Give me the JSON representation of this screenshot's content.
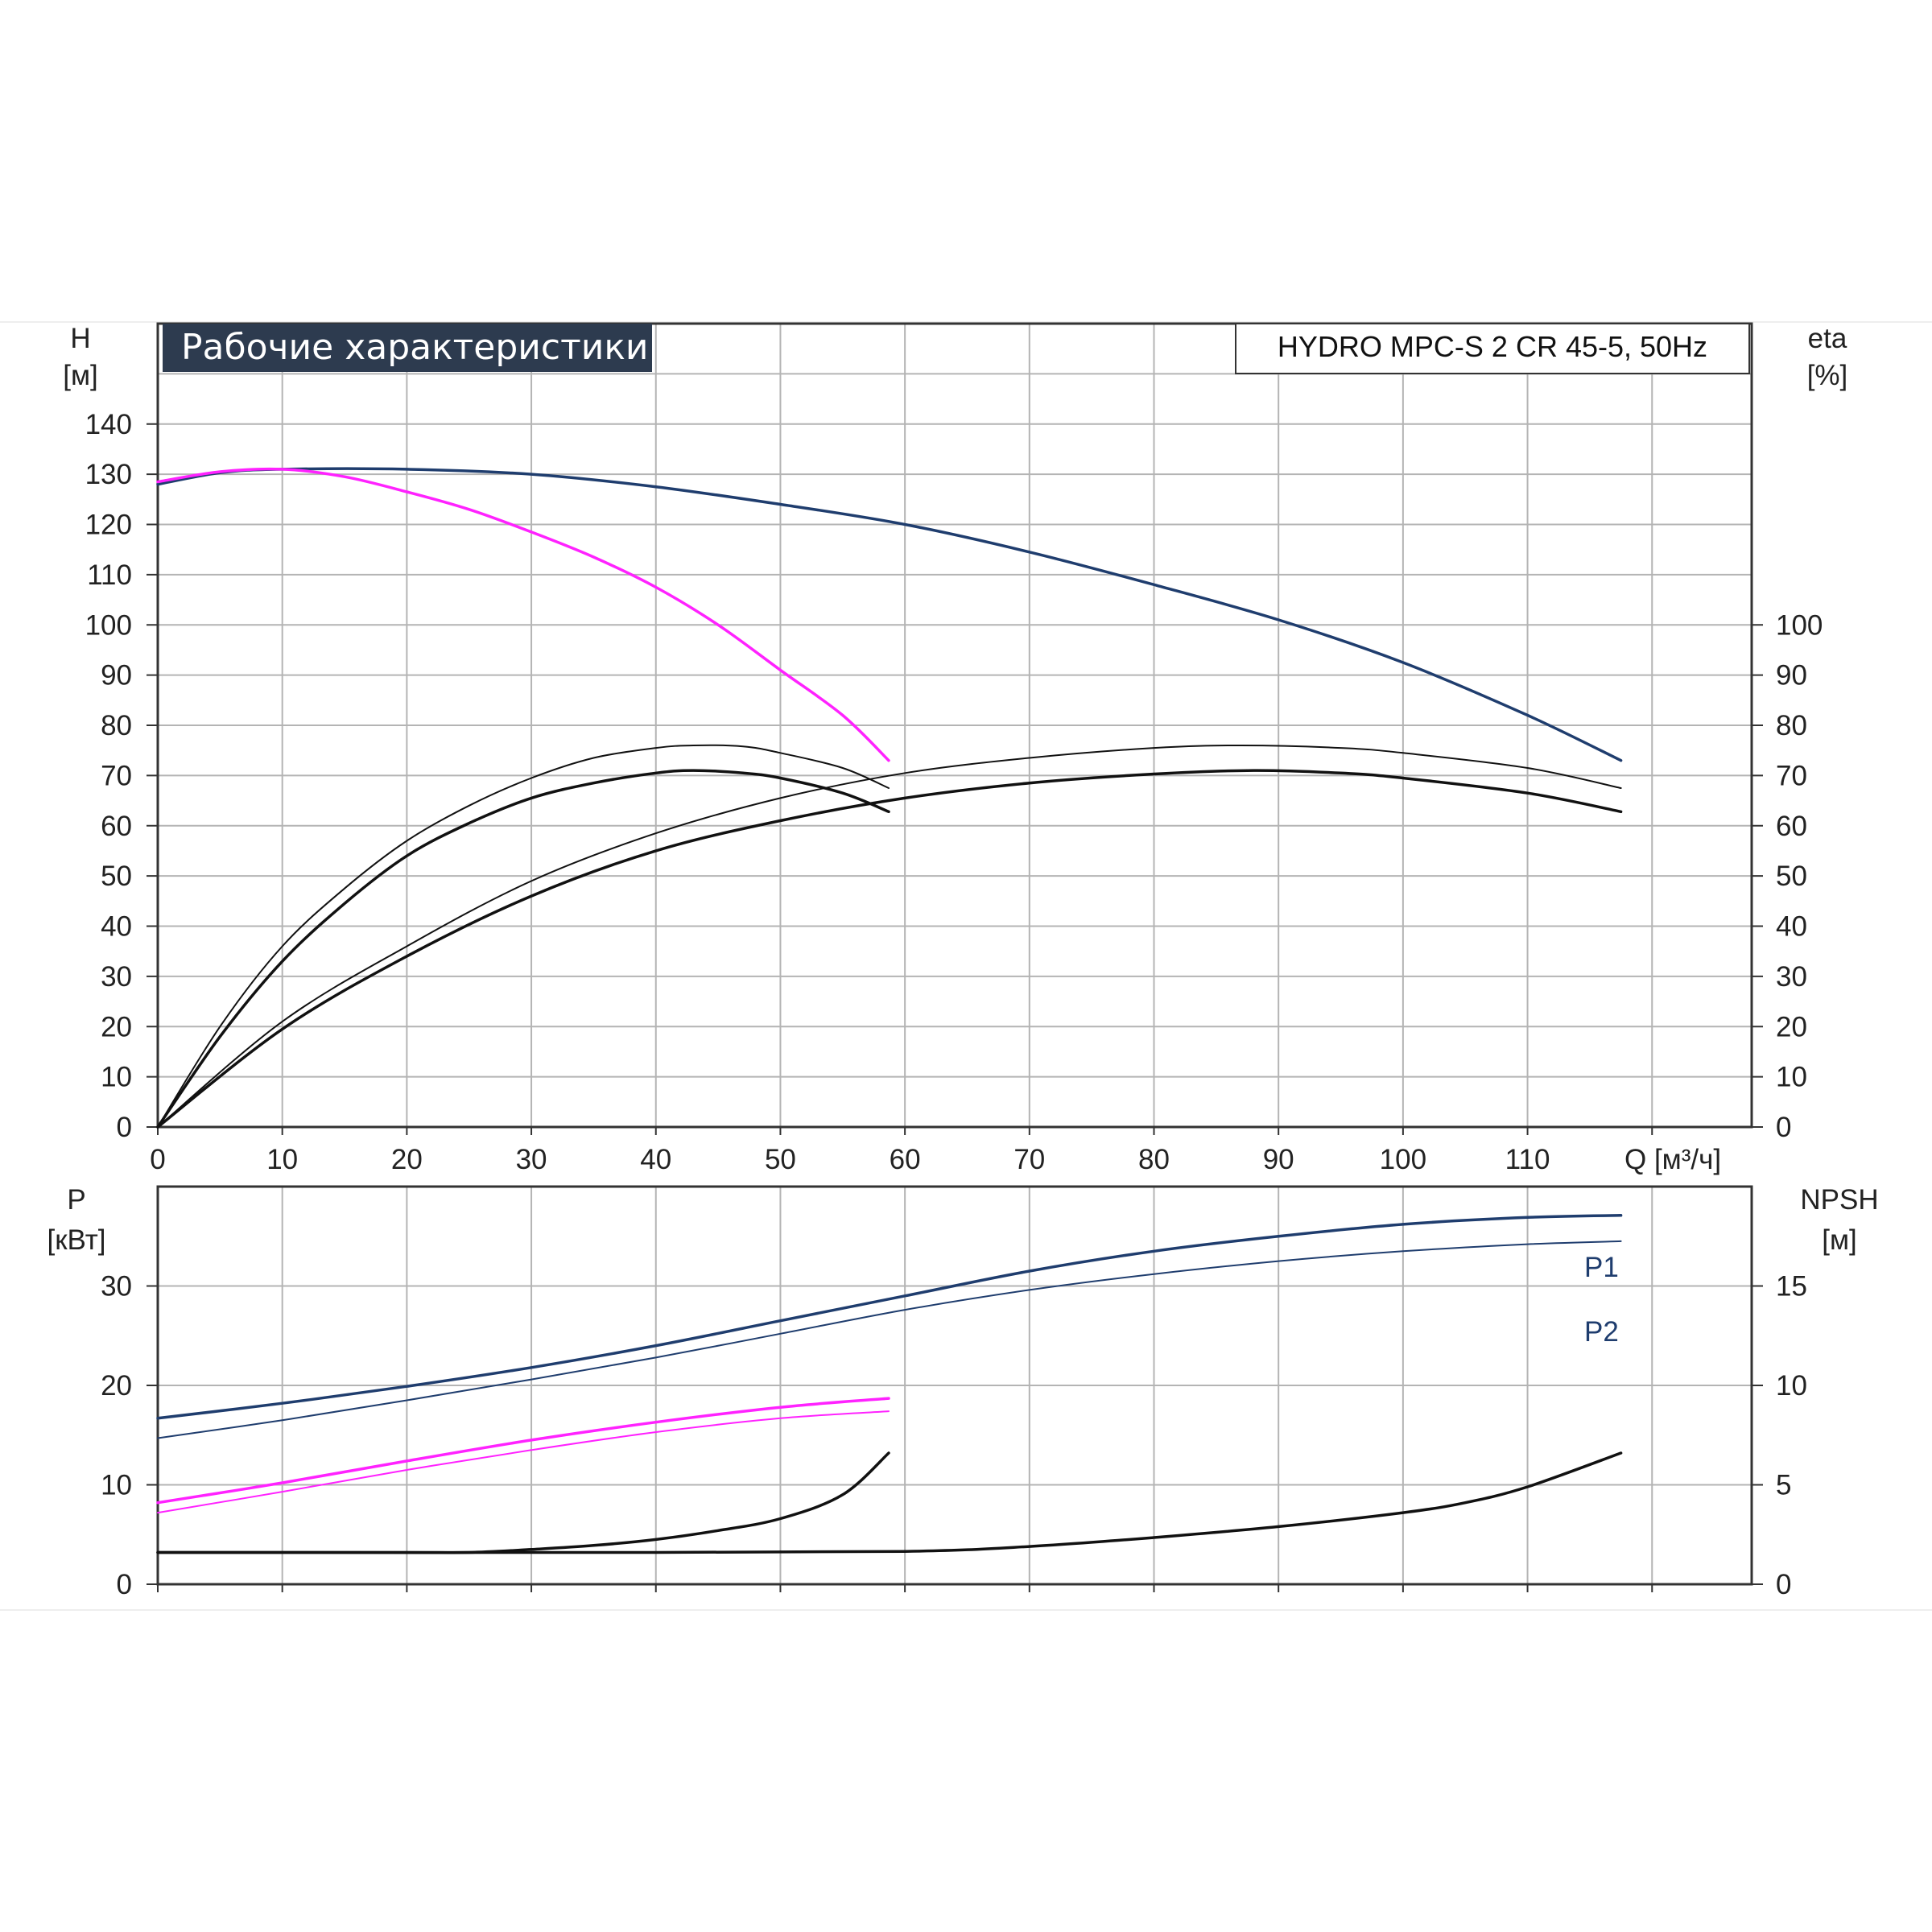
{
  "chart_data": [
    {
      "type": "line",
      "title": "Рабочие характеристики",
      "model_label": "HYDRO MPC-S 2 CR 45-5, 50Hz",
      "ylabel_left": "H",
      "yunit_left": "[м]",
      "ylabel_right": "eta",
      "yunit_right": "[%]",
      "xlabel": "Q [м³/ч]",
      "xlim": [
        0,
        128
      ],
      "ylim_left": [
        0,
        160
      ],
      "ylim_right": [
        0,
        160
      ],
      "x_ticks": [
        "0",
        "10",
        "20",
        "30",
        "40",
        "50",
        "60",
        "70",
        "80",
        "90",
        "100",
        "110"
      ],
      "y_ticks_left": [
        "0",
        "10",
        "20",
        "30",
        "40",
        "50",
        "60",
        "70",
        "80",
        "90",
        "100",
        "110",
        "120",
        "130",
        "140"
      ],
      "y_ticks_right": [
        "0",
        "10",
        "20",
        "30",
        "40",
        "50",
        "60",
        "70",
        "80",
        "90",
        "100"
      ],
      "grid": true,
      "series": [
        {
          "color": "#1f3d6e",
          "width": 3.5,
          "axis": "left",
          "points": [
            [
              0,
              128
            ],
            [
              5,
              130.3
            ],
            [
              10,
              131
            ],
            [
              20,
              131
            ],
            [
              30,
              130
            ],
            [
              40,
              127.5
            ],
            [
              50,
              124
            ],
            [
              60,
              120
            ],
            [
              70,
              114.5
            ],
            [
              80,
              108
            ],
            [
              90,
              101
            ],
            [
              100,
              92.5
            ],
            [
              110,
              82
            ],
            [
              117.5,
              73
            ]
          ]
        },
        {
          "color": "#ff22ff",
          "width": 3.5,
          "axis": "left",
          "points": [
            [
              0,
              128.5
            ],
            [
              5,
              130.5
            ],
            [
              10,
              131
            ],
            [
              15,
              129.5
            ],
            [
              20,
              126.5
            ],
            [
              25,
              123
            ],
            [
              30,
              118.5
            ],
            [
              35,
              113.5
            ],
            [
              40,
              107.5
            ],
            [
              45,
              100
            ],
            [
              50,
              91
            ],
            [
              55,
              82
            ],
            [
              58.7,
              73
            ]
          ]
        },
        {
          "color": "#111111",
          "width": 2,
          "axis": "right",
          "points": [
            [
              0,
              0
            ],
            [
              5,
              20
            ],
            [
              10,
              36
            ],
            [
              15,
              47.5
            ],
            [
              20,
              57
            ],
            [
              25,
              64
            ],
            [
              30,
              69.5
            ],
            [
              35,
              73.5
            ],
            [
              40,
              75.5
            ],
            [
              43,
              76
            ],
            [
              47,
              75.8
            ],
            [
              50,
              74.5
            ],
            [
              55,
              71.5
            ],
            [
              58.7,
              67.5
            ]
          ]
        },
        {
          "color": "#111111",
          "width": 3.5,
          "axis": "right",
          "points": [
            [
              0,
              0
            ],
            [
              5,
              18
            ],
            [
              10,
              33
            ],
            [
              15,
              44.5
            ],
            [
              20,
              54
            ],
            [
              25,
              60.5
            ],
            [
              30,
              65.5
            ],
            [
              35,
              68.5
            ],
            [
              40,
              70.5
            ],
            [
              43,
              71
            ],
            [
              47,
              70.5
            ],
            [
              50,
              69.5
            ],
            [
              55,
              66.5
            ],
            [
              58.7,
              62.8
            ]
          ]
        },
        {
          "color": "#111111",
          "width": 2,
          "axis": "right",
          "points": [
            [
              0,
              0
            ],
            [
              10,
              21
            ],
            [
              20,
              36
            ],
            [
              30,
              49
            ],
            [
              40,
              58.5
            ],
            [
              50,
              65.5
            ],
            [
              60,
              70.5
            ],
            [
              70,
              73.5
            ],
            [
              80,
              75.5
            ],
            [
              87,
              76
            ],
            [
              95,
              75.5
            ],
            [
              100,
              74.5
            ],
            [
              110,
              71.5
            ],
            [
              117.5,
              67.5
            ]
          ]
        },
        {
          "color": "#111111",
          "width": 3.5,
          "axis": "right",
          "points": [
            [
              0,
              0
            ],
            [
              10,
              19.5
            ],
            [
              20,
              34
            ],
            [
              30,
              46
            ],
            [
              40,
              55
            ],
            [
              50,
              61
            ],
            [
              60,
              65.5
            ],
            [
              70,
              68.5
            ],
            [
              80,
              70.3
            ],
            [
              88,
              71
            ],
            [
              95,
              70.5
            ],
            [
              100,
              69.5
            ],
            [
              110,
              66.5
            ],
            [
              117.5,
              62.8
            ]
          ]
        }
      ]
    },
    {
      "type": "line",
      "ylabel_left": "P",
      "yunit_left": "[кВт]",
      "ylabel_right": "NPSH",
      "yunit_right": "[м]",
      "xlim": [
        0,
        128
      ],
      "ylim_left": [
        0,
        40
      ],
      "ylim_right": [
        0,
        20
      ],
      "y_ticks_left": [
        "0",
        "10",
        "20",
        "30"
      ],
      "y_ticks_right": [
        "0",
        "5",
        "10",
        "15"
      ],
      "grid": true,
      "series": [
        {
          "name": "P1",
          "color": "#1f3d6e",
          "width": 3.5,
          "axis": "left",
          "points": [
            [
              0,
              16.7
            ],
            [
              10,
              18.2
            ],
            [
              20,
              19.9
            ],
            [
              30,
              21.8
            ],
            [
              40,
              24
            ],
            [
              50,
              26.5
            ],
            [
              60,
              29
            ],
            [
              70,
              31.5
            ],
            [
              80,
              33.5
            ],
            [
              90,
              35
            ],
            [
              100,
              36.2
            ],
            [
              110,
              36.9
            ],
            [
              117.5,
              37.1
            ]
          ]
        },
        {
          "name": "P2",
          "color": "#1f3d6e",
          "width": 2,
          "axis": "left",
          "points": [
            [
              0,
              14.7
            ],
            [
              10,
              16.5
            ],
            [
              20,
              18.5
            ],
            [
              30,
              20.6
            ],
            [
              40,
              22.8
            ],
            [
              50,
              25.2
            ],
            [
              60,
              27.6
            ],
            [
              70,
              29.6
            ],
            [
              80,
              31.2
            ],
            [
              90,
              32.5
            ],
            [
              100,
              33.5
            ],
            [
              110,
              34.2
            ],
            [
              117.5,
              34.5
            ]
          ]
        },
        {
          "color": "#ff22ff",
          "width": 3.5,
          "axis": "left",
          "points": [
            [
              0,
              8.2
            ],
            [
              10,
              10.2
            ],
            [
              20,
              12.4
            ],
            [
              30,
              14.5
            ],
            [
              40,
              16.3
            ],
            [
              50,
              17.8
            ],
            [
              58.7,
              18.7
            ]
          ]
        },
        {
          "color": "#ff22ff",
          "width": 2,
          "axis": "left",
          "points": [
            [
              0,
              7.2
            ],
            [
              10,
              9.3
            ],
            [
              20,
              11.5
            ],
            [
              30,
              13.5
            ],
            [
              40,
              15.3
            ],
            [
              50,
              16.7
            ],
            [
              58.7,
              17.4
            ]
          ]
        },
        {
          "color": "#111111",
          "width": 3.5,
          "axis": "right",
          "points": [
            [
              0,
              1.6
            ],
            [
              20,
              1.6
            ],
            [
              25,
              1.6
            ],
            [
              30,
              1.75
            ],
            [
              35,
              1.95
            ],
            [
              40,
              2.25
            ],
            [
              45,
              2.7
            ],
            [
              50,
              3.3
            ],
            [
              55,
              4.5
            ],
            [
              58.7,
              6.6
            ]
          ]
        },
        {
          "color": "#111111",
          "width": 3.5,
          "axis": "right",
          "points": [
            [
              0,
              1.6
            ],
            [
              40,
              1.6
            ],
            [
              60,
              1.65
            ],
            [
              70,
              1.9
            ],
            [
              80,
              2.35
            ],
            [
              90,
              2.9
            ],
            [
              100,
              3.6
            ],
            [
              105,
              4.1
            ],
            [
              110,
              4.9
            ],
            [
              117.5,
              6.6
            ]
          ]
        }
      ]
    }
  ]
}
